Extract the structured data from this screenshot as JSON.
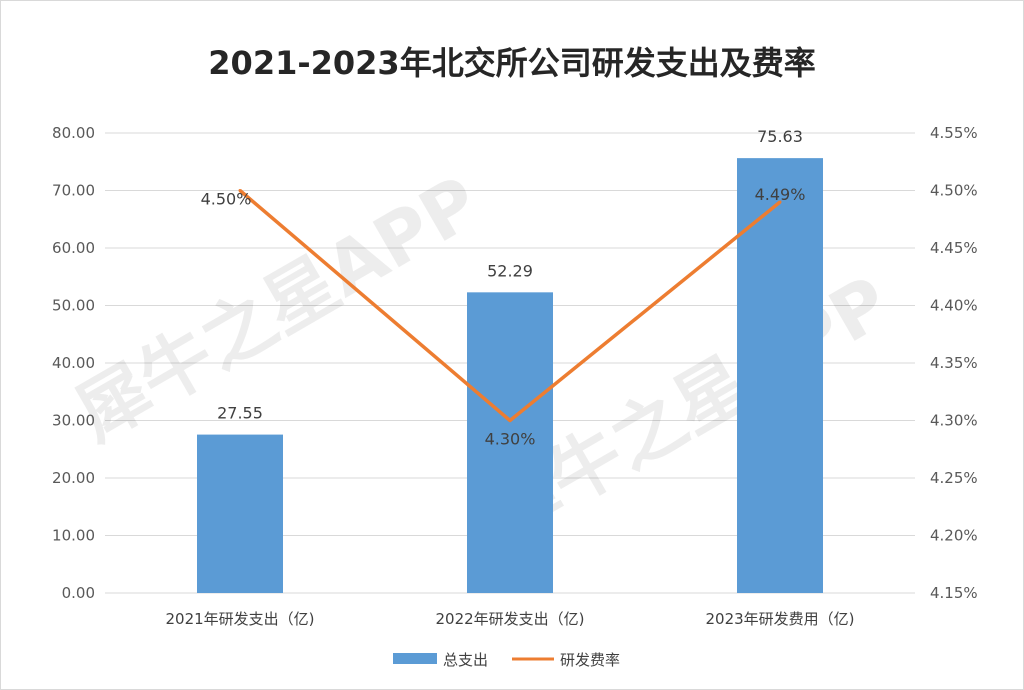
{
  "chart_data": {
    "type": "bar+line",
    "title": "2021-2023年北交所公司研发支出及费率",
    "categories": [
      "2021年研发支出（亿)",
      "2022年研发支出（亿)",
      "2023年研发费用（亿)"
    ],
    "series": [
      {
        "name": "总支出",
        "type": "bar",
        "axis": "left",
        "color": "#5B9BD5",
        "values": [
          27.55,
          52.29,
          75.63
        ],
        "labels": [
          "27.55",
          "52.29",
          "75.63"
        ]
      },
      {
        "name": "研发费率",
        "type": "line",
        "axis": "right",
        "color": "#ED7D31",
        "values": [
          4.5,
          4.3,
          4.49
        ],
        "labels": [
          "4.50%",
          "4.30%",
          "4.49%"
        ]
      }
    ],
    "left_axis": {
      "range": [
        0,
        80
      ],
      "ticks": [
        "0.00",
        "10.00",
        "20.00",
        "30.00",
        "40.00",
        "50.00",
        "60.00",
        "70.00",
        "80.00"
      ]
    },
    "right_axis": {
      "range": [
        4.15,
        4.55
      ],
      "ticks": [
        "4.15%",
        "4.20%",
        "4.25%",
        "4.30%",
        "4.35%",
        "4.40%",
        "4.45%",
        "4.50%",
        "4.55%"
      ]
    },
    "grid": "horizontal",
    "legend_position": "bottom"
  },
  "watermark": "犀牛之星APP"
}
